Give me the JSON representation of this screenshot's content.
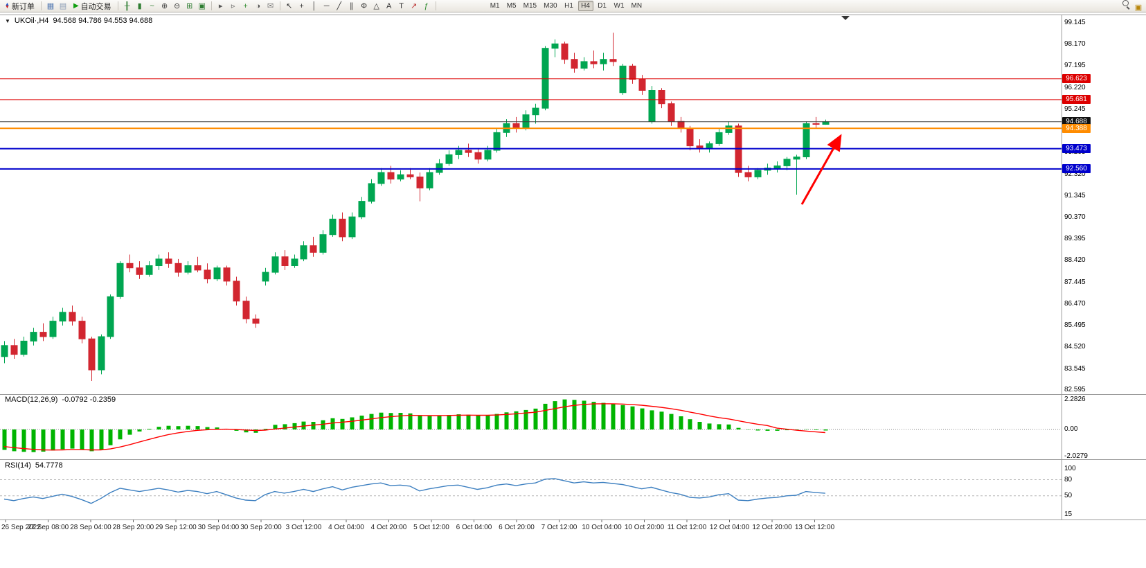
{
  "icons": {
    "new_order_up": "▲",
    "new_order_down": "▼",
    "autotrading_play": "▶",
    "collapse": "▼"
  },
  "toolbar": {
    "new_order_label": "新订单",
    "autotrading_label": "自动交易",
    "timeframes": [
      "M1",
      "M5",
      "M15",
      "M30",
      "H1",
      "H4",
      "D1",
      "W1",
      "MN"
    ],
    "active_timeframe": "H4",
    "group_windows": [
      {
        "name": "chart-window-icon",
        "glyph": "▦",
        "color": "#5b7fb5"
      },
      {
        "name": "profile-icon",
        "glyph": "▤",
        "color": "#8a9bb5"
      }
    ],
    "group_chart": [
      {
        "name": "bar-chart-icon",
        "glyph": "╫",
        "color": "#2e7d32"
      },
      {
        "name": "candlestick-chart-icon",
        "glyph": "▮",
        "color": "#2e7d32"
      },
      {
        "name": "line-chart-icon",
        "glyph": "~",
        "color": "#2e7d32"
      },
      {
        "name": "zoom-in-icon",
        "glyph": "⊕",
        "color": "#444444"
      },
      {
        "name": "zoom-out-icon",
        "glyph": "⊖",
        "color": "#444444"
      },
      {
        "name": "grid-icon",
        "glyph": "⊞",
        "color": "#2e7d32"
      },
      {
        "name": "tile-windows-icon",
        "glyph": "▣",
        "color": "#2e7d32"
      }
    ],
    "group_tools": [
      {
        "name": "autoscroll-icon",
        "glyph": "▸",
        "color": "#555555"
      },
      {
        "name": "chart-shift-icon",
        "glyph": "▹",
        "color": "#555555"
      },
      {
        "name": "new-chart-icon",
        "glyph": "+",
        "color": "#2e8b2e"
      },
      {
        "name": "period-icon",
        "glyph": "◑",
        "color": "#555555"
      },
      {
        "name": "mail-icon",
        "glyph": "✉",
        "color": "#777777"
      }
    ],
    "group_objects": [
      {
        "name": "cursor-icon",
        "glyph": "↖",
        "color": "#333333"
      },
      {
        "name": "crosshair-icon",
        "glyph": "+",
        "color": "#333333"
      },
      {
        "name": "vertical-line-icon",
        "glyph": "│",
        "color": "#333333"
      },
      {
        "name": "horizontal-line-icon",
        "glyph": "─",
        "color": "#333333"
      },
      {
        "name": "trendline-icon",
        "glyph": "╱",
        "color": "#333333"
      },
      {
        "name": "channel-icon",
        "glyph": "∥",
        "color": "#333333"
      },
      {
        "name": "fibonacci-icon",
        "glyph": "Φ",
        "color": "#333333"
      },
      {
        "name": "shapes-icon",
        "glyph": "△",
        "color": "#333333"
      },
      {
        "name": "text-icon",
        "glyph": "A",
        "color": "#333333"
      },
      {
        "name": "label-icon",
        "glyph": "T",
        "color": "#333333"
      },
      {
        "name": "arrows-icon",
        "glyph": "↗",
        "color": "#bb3333"
      },
      {
        "name": "indicators-icon",
        "glyph": "ƒ",
        "color": "#2e8b2e"
      }
    ],
    "group_right": [
      {
        "name": "search-icon",
        "glyph": "",
        "color": "#444444",
        "css": "mag"
      },
      {
        "name": "panels-icon",
        "glyph": "▣",
        "color": "#b8860b"
      }
    ]
  },
  "chart_header": {
    "symbol_period": "UKOil·,H4",
    "ohlc": "94.568 94.786 94.553 94.688"
  },
  "chart_data": {
    "type": "candlestick",
    "symbol": "UKOil",
    "period": "H4",
    "colors": {
      "bull": "#00a651",
      "bear": "#d22630"
    },
    "price_axis": {
      "labels": [
        "99.145",
        "98.170",
        "97.195",
        "96.220",
        "95.245",
        "94.270",
        "93.295",
        "92.320",
        "91.345",
        "90.370",
        "89.395",
        "88.420",
        "87.445",
        "86.470",
        "85.495",
        "84.520",
        "83.545",
        "82.595"
      ]
    },
    "levels": [
      {
        "value": 96.623,
        "color": "#dd0000",
        "width": 1,
        "badge": "96.623",
        "badge_bg": "#dd0000"
      },
      {
        "value": 95.681,
        "color": "#dd0000",
        "width": 1,
        "badge": "95.681",
        "badge_bg": "#dd0000"
      },
      {
        "value": 94.688,
        "color": "#3a3a3a",
        "width": 1,
        "badge": "94.688",
        "badge_bg": "#111111"
      },
      {
        "value": 94.388,
        "color": "#ff8c00",
        "width": 2,
        "badge": "94.388",
        "badge_bg": "#ff8c00"
      },
      {
        "value": 93.473,
        "color": "#0000cc",
        "width": 2,
        "badge": "93.473",
        "badge_bg": "#0000cc"
      },
      {
        "value": 92.56,
        "color": "#0000cc",
        "width": 2,
        "badge": "92.560",
        "badge_bg": "#0000cc"
      }
    ],
    "candles": [
      [
        84.1,
        84.8,
        83.8,
        84.6
      ],
      [
        84.6,
        84.9,
        84.0,
        84.2
      ],
      [
        84.2,
        85.0,
        84.1,
        84.8
      ],
      [
        84.8,
        85.4,
        84.6,
        85.2
      ],
      [
        85.2,
        85.6,
        84.8,
        85.0
      ],
      [
        85.0,
        85.9,
        84.9,
        85.7
      ],
      [
        85.7,
        86.3,
        85.5,
        86.1
      ],
      [
        86.1,
        86.4,
        85.5,
        85.7
      ],
      [
        85.7,
        85.9,
        84.7,
        84.9
      ],
      [
        84.9,
        85.0,
        83.0,
        83.5
      ],
      [
        83.5,
        85.1,
        83.3,
        85.0
      ],
      [
        85.0,
        86.9,
        84.9,
        86.8
      ],
      [
        86.8,
        88.4,
        86.7,
        88.3
      ],
      [
        88.3,
        88.7,
        87.9,
        88.1
      ],
      [
        88.1,
        88.4,
        87.6,
        87.8
      ],
      [
        87.8,
        88.4,
        87.7,
        88.2
      ],
      [
        88.2,
        88.7,
        88.0,
        88.5
      ],
      [
        88.5,
        88.8,
        88.1,
        88.3
      ],
      [
        88.3,
        88.5,
        87.7,
        87.9
      ],
      [
        87.9,
        88.4,
        87.8,
        88.2
      ],
      [
        88.2,
        88.6,
        87.9,
        88.0
      ],
      [
        88.0,
        88.3,
        87.4,
        87.6
      ],
      [
        87.6,
        88.2,
        87.5,
        88.1
      ],
      [
        88.1,
        88.2,
        87.3,
        87.5
      ],
      [
        87.5,
        87.7,
        86.4,
        86.6
      ],
      [
        86.6,
        86.8,
        85.6,
        85.8
      ],
      [
        85.8,
        86.0,
        85.4,
        85.6
      ],
      [
        87.5,
        88.1,
        87.3,
        87.9
      ],
      [
        87.9,
        88.8,
        87.8,
        88.6
      ],
      [
        88.6,
        88.9,
        88.0,
        88.2
      ],
      [
        88.2,
        88.7,
        88.1,
        88.5
      ],
      [
        88.5,
        89.3,
        88.4,
        89.1
      ],
      [
        89.1,
        89.5,
        88.6,
        88.8
      ],
      [
        88.8,
        89.8,
        88.7,
        89.6
      ],
      [
        89.6,
        90.5,
        89.5,
        90.3
      ],
      [
        90.3,
        90.6,
        89.3,
        89.5
      ],
      [
        89.5,
        90.6,
        89.4,
        90.4
      ],
      [
        90.4,
        91.3,
        90.3,
        91.1
      ],
      [
        91.1,
        92.1,
        91.0,
        91.9
      ],
      [
        91.9,
        92.6,
        91.8,
        92.4
      ],
      [
        92.4,
        92.7,
        91.9,
        92.1
      ],
      [
        92.1,
        92.5,
        92.0,
        92.3
      ],
      [
        92.3,
        92.6,
        92.1,
        92.2
      ],
      [
        92.2,
        92.4,
        91.1,
        91.7
      ],
      [
        91.7,
        92.6,
        91.6,
        92.4
      ],
      [
        92.4,
        93.0,
        92.3,
        92.8
      ],
      [
        92.8,
        93.4,
        92.7,
        93.2
      ],
      [
        93.2,
        93.6,
        93.0,
        93.4
      ],
      [
        93.4,
        93.7,
        93.1,
        93.3
      ],
      [
        93.3,
        93.5,
        92.8,
        93.0
      ],
      [
        93.0,
        93.6,
        92.9,
        93.4
      ],
      [
        93.4,
        94.4,
        93.3,
        94.2
      ],
      [
        94.2,
        94.8,
        94.0,
        94.6
      ],
      [
        94.6,
        94.9,
        94.2,
        94.4
      ],
      [
        94.4,
        95.2,
        94.3,
        95.0
      ],
      [
        95.0,
        95.5,
        94.6,
        95.3
      ],
      [
        95.3,
        98.1,
        95.2,
        98.0
      ],
      [
        98.0,
        98.4,
        97.6,
        98.2
      ],
      [
        98.2,
        98.3,
        97.3,
        97.5
      ],
      [
        97.5,
        97.8,
        96.9,
        97.1
      ],
      [
        97.1,
        97.6,
        97.0,
        97.4
      ],
      [
        97.4,
        97.9,
        97.1,
        97.3
      ],
      [
        97.3,
        97.8,
        97.0,
        97.5
      ],
      [
        97.5,
        98.7,
        97.2,
        97.4
      ],
      [
        96.0,
        97.3,
        95.9,
        97.2
      ],
      [
        97.2,
        97.3,
        96.4,
        96.6
      ],
      [
        96.6,
        96.8,
        95.9,
        96.1
      ],
      [
        94.7,
        96.3,
        94.6,
        96.1
      ],
      [
        96.1,
        96.2,
        95.3,
        95.5
      ],
      [
        95.5,
        95.6,
        94.5,
        94.7
      ],
      [
        94.7,
        94.9,
        94.2,
        94.4
      ],
      [
        94.4,
        94.5,
        93.4,
        93.6
      ],
      [
        93.6,
        93.9,
        93.3,
        93.5
      ],
      [
        93.5,
        93.8,
        93.3,
        93.7
      ],
      [
        93.7,
        94.4,
        93.6,
        94.2
      ],
      [
        94.2,
        94.7,
        94.1,
        94.5
      ],
      [
        94.5,
        94.6,
        92.2,
        92.4
      ],
      [
        92.4,
        92.7,
        92.0,
        92.2
      ],
      [
        92.2,
        92.6,
        92.1,
        92.5
      ],
      [
        92.5,
        92.8,
        92.3,
        92.6
      ],
      [
        92.6,
        92.9,
        92.4,
        92.7
      ],
      [
        92.7,
        93.1,
        92.5,
        93.0
      ],
      [
        93.0,
        93.2,
        91.4,
        93.1
      ],
      [
        93.1,
        94.7,
        93.0,
        94.6
      ],
      [
        94.6,
        94.9,
        94.4,
        94.57
      ],
      [
        94.568,
        94.786,
        94.553,
        94.688
      ]
    ],
    "macd": {
      "label": "MACD(12,26,9)",
      "values_text": "-0.0792 -0.2359",
      "axis_labels": [
        "2.2826",
        "0.00",
        "-2.0279"
      ],
      "hist_color": "#00b400",
      "signal_color": "#ff0000",
      "histogram": [
        -1.55,
        -1.65,
        -1.7,
        -1.72,
        -1.68,
        -1.6,
        -1.5,
        -1.45,
        -1.52,
        -1.65,
        -1.55,
        -1.2,
        -0.75,
        -0.4,
        -0.15,
        0.05,
        0.2,
        0.28,
        0.25,
        0.28,
        0.26,
        0.18,
        0.15,
        0.05,
        -0.1,
        -0.22,
        -0.25,
        0.05,
        0.35,
        0.4,
        0.48,
        0.6,
        0.58,
        0.7,
        0.85,
        0.8,
        0.92,
        1.05,
        1.18,
        1.28,
        1.25,
        1.26,
        1.22,
        1.05,
        1.02,
        1.05,
        1.1,
        1.15,
        1.12,
        1.05,
        1.08,
        1.18,
        1.3,
        1.38,
        1.48,
        1.58,
        1.95,
        2.15,
        2.28,
        2.25,
        2.18,
        2.1,
        2.02,
        1.95,
        1.85,
        1.75,
        1.6,
        1.45,
        1.35,
        1.18,
        1.0,
        0.78,
        0.58,
        0.45,
        0.4,
        0.38,
        0.12,
        -0.02,
        -0.08,
        -0.1,
        -0.1,
        -0.06,
        -0.04,
        0.02,
        -0.04,
        -0.0792
      ],
      "signal": [
        -1.3,
        -1.38,
        -1.45,
        -1.51,
        -1.55,
        -1.56,
        -1.55,
        -1.53,
        -1.53,
        -1.55,
        -1.55,
        -1.48,
        -1.33,
        -1.15,
        -0.95,
        -0.75,
        -0.56,
        -0.39,
        -0.26,
        -0.15,
        -0.07,
        -0.02,
        0.01,
        0.02,
        0.0,
        -0.04,
        -0.08,
        -0.05,
        0.03,
        0.1,
        0.18,
        0.26,
        0.33,
        0.4,
        0.49,
        0.55,
        0.62,
        0.71,
        0.8,
        0.9,
        0.97,
        1.03,
        1.07,
        1.06,
        1.05,
        1.05,
        1.06,
        1.08,
        1.09,
        1.08,
        1.08,
        1.1,
        1.14,
        1.19,
        1.25,
        1.31,
        1.44,
        1.58,
        1.72,
        1.83,
        1.9,
        1.94,
        1.95,
        1.95,
        1.93,
        1.89,
        1.84,
        1.76,
        1.68,
        1.58,
        1.46,
        1.32,
        1.18,
        1.03,
        0.9,
        0.8,
        0.66,
        0.52,
        0.4,
        0.3,
        0.1,
        0.02,
        -0.06,
        -0.12,
        -0.18,
        -0.2359
      ]
    },
    "rsi": {
      "label": "RSI(14)",
      "value_text": "54.7778",
      "axis_labels": [
        "100",
        "80",
        "50",
        "15"
      ],
      "levels": [
        80,
        50
      ],
      "line_color": "#3c7fc0",
      "values": [
        44,
        41,
        45,
        48,
        45,
        49,
        53,
        49,
        43,
        36,
        45,
        56,
        64,
        61,
        58,
        61,
        64,
        61,
        57,
        60,
        58,
        54,
        58,
        52,
        46,
        42,
        41,
        52,
        58,
        55,
        58,
        62,
        58,
        63,
        67,
        61,
        66,
        69,
        72,
        74,
        69,
        70,
        68,
        59,
        63,
        66,
        69,
        70,
        66,
        62,
        65,
        70,
        72,
        69,
        72,
        74,
        81,
        82,
        78,
        74,
        76,
        74,
        75,
        73,
        71,
        67,
        63,
        66,
        61,
        56,
        53,
        47,
        46,
        48,
        52,
        54,
        42,
        41,
        44,
        46,
        47,
        50,
        51,
        58,
        56,
        54.7778
      ]
    },
    "time_axis": {
      "labels": [
        "26 Sep 2022",
        "27 Sep 08:00",
        "28 Sep 04:00",
        "28 Sep 20:00",
        "29 Sep 12:00",
        "30 Sep 04:00",
        "30 Sep 20:00",
        "3 Oct 12:00",
        "4 Oct 04:00",
        "4 Oct 20:00",
        "5 Oct 12:00",
        "6 Oct 04:00",
        "6 Oct 20:00",
        "7 Oct 12:00",
        "10 Oct 04:00",
        "10 Oct 20:00",
        "11 Oct 12:00",
        "12 Oct 04:00",
        "12 Oct 20:00",
        "13 Oct 12:00"
      ]
    },
    "annotations": {
      "arrow": {
        "from": [
          1158,
          277
        ],
        "to": [
          1214,
          178
        ],
        "color": "#ff0000"
      }
    }
  }
}
